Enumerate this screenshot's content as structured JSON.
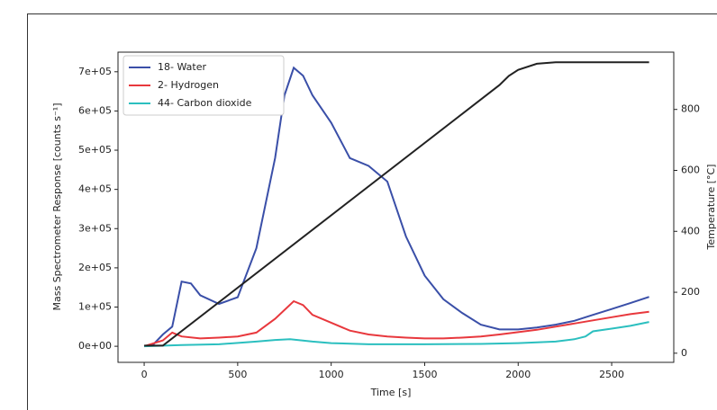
{
  "chart_data": {
    "type": "line",
    "xlabel": "Time [s]",
    "ylabel": "Mass Spectrometer Response [counts s⁻¹]",
    "y2label": "Temperature [°C]",
    "xlim": [
      -140,
      2832
    ],
    "xticks": [
      0,
      500,
      1000,
      1500,
      2000,
      2500
    ],
    "ylim": [
      -41000,
      750000
    ],
    "yticks": [
      {
        "value": 0,
        "label": "0e+00"
      },
      {
        "value": 100000,
        "label": "1e+05"
      },
      {
        "value": 200000,
        "label": "2e+05"
      },
      {
        "value": 300000,
        "label": "3e+05"
      },
      {
        "value": 400000,
        "label": "4e+05"
      },
      {
        "value": 500000,
        "label": "5e+05"
      },
      {
        "value": 600000,
        "label": "6e+05"
      },
      {
        "value": 700000,
        "label": "7e+05"
      }
    ],
    "y2lim": [
      -30,
      988
    ],
    "y2ticks": [
      0,
      200,
      400,
      600,
      800
    ],
    "legend": "upper-left",
    "series": [
      {
        "name": "18- Water",
        "color": "#3a4fa8",
        "x": [
          0,
          50,
          100,
          150,
          200,
          250,
          300,
          400,
          500,
          600,
          700,
          750,
          800,
          850,
          900,
          1000,
          1100,
          1200,
          1300,
          1400,
          1500,
          1600,
          1700,
          1800,
          1900,
          2000,
          2100,
          2200,
          2300,
          2400,
          2500,
          2600,
          2700
        ],
        "values": [
          0,
          5000,
          30000,
          50000,
          165000,
          160000,
          130000,
          108000,
          125000,
          250000,
          480000,
          640000,
          710000,
          690000,
          640000,
          570000,
          480000,
          460000,
          420000,
          280000,
          180000,
          120000,
          85000,
          55000,
          43000,
          43000,
          48000,
          55000,
          65000,
          80000,
          95000,
          110000,
          126000
        ]
      },
      {
        "name": "2- Hydrogen",
        "color": "#e8383d",
        "x": [
          0,
          100,
          150,
          200,
          300,
          400,
          500,
          600,
          700,
          800,
          850,
          900,
          1000,
          1100,
          1200,
          1300,
          1400,
          1500,
          1600,
          1700,
          1800,
          1900,
          2000,
          2100,
          2200,
          2300,
          2400,
          2500,
          2600,
          2700
        ],
        "values": [
          0,
          15000,
          35000,
          25000,
          20000,
          22000,
          25000,
          35000,
          70000,
          115000,
          105000,
          80000,
          60000,
          40000,
          30000,
          25000,
          22000,
          20000,
          20000,
          22000,
          25000,
          30000,
          36000,
          42000,
          50000,
          58000,
          66000,
          74000,
          82000,
          88000
        ]
      },
      {
        "name": "44- Carbon dioxide",
        "color": "#2bbfbf",
        "x": [
          0,
          200,
          400,
          600,
          700,
          780,
          900,
          1000,
          1200,
          1500,
          1800,
          2000,
          2200,
          2300,
          2360,
          2400,
          2500,
          2600,
          2700
        ],
        "values": [
          0,
          3000,
          5000,
          12000,
          16000,
          18000,
          12000,
          8000,
          5000,
          5000,
          6000,
          8000,
          12000,
          18000,
          25000,
          38000,
          45000,
          52000,
          62000
        ]
      },
      {
        "color": "#222222",
        "axis": "y2",
        "x": [
          0,
          100,
          1900,
          1950,
          2000,
          2100,
          2200,
          2700
        ],
        "values": [
          25,
          25,
          880,
          910,
          930,
          950,
          955,
          955
        ]
      }
    ]
  }
}
